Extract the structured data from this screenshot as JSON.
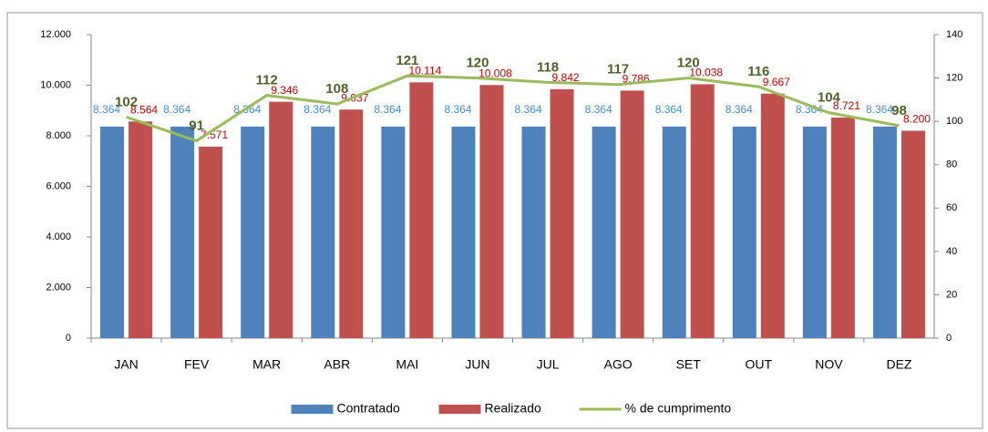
{
  "chart_data": {
    "type": "bar",
    "categories": [
      "JAN",
      "FEV",
      "MAR",
      "ABR",
      "MAI",
      "JUN",
      "JUL",
      "AGO",
      "SET",
      "OUT",
      "NOV",
      "DEZ"
    ],
    "series": [
      {
        "name": "Contratado",
        "type": "bar",
        "color": "#4f81bd",
        "label_color": "#3d8fd6",
        "values": [
          8364,
          8364,
          8364,
          8364,
          8364,
          8364,
          8364,
          8364,
          8364,
          8364,
          8364,
          8364
        ],
        "value_labels": [
          "8.364",
          "8.364",
          "8.364",
          "8.364",
          "8.364",
          "8.364",
          "8.364",
          "8.364",
          "8.364",
          "8.364",
          "8.364",
          "8.364"
        ]
      },
      {
        "name": "Realizado",
        "type": "bar",
        "color": "#c0504d",
        "label_color": "#c00000",
        "values": [
          8564,
          7571,
          9346,
          9037,
          10114,
          10008,
          9842,
          9786,
          10038,
          9667,
          8721,
          8200
        ],
        "value_labels": [
          "8.564",
          "7.571",
          "9.346",
          "9.037",
          "10.114",
          "10.008",
          "9.842",
          "9.786",
          "10.038",
          "9.667",
          "8.721",
          "8.200"
        ]
      },
      {
        "name": "% de cumprimento",
        "type": "line",
        "axis": "y2",
        "color": "#9bbb59",
        "label_color": "#4f6228",
        "values": [
          102,
          91,
          112,
          108,
          121,
          120,
          118,
          117,
          120,
          116,
          104,
          98
        ]
      }
    ],
    "ylim": [
      0,
      12000
    ],
    "yticks": [
      0,
      {
        "value": 2000,
        "label": "2.000"
      },
      {
        "value": 4000,
        "label": "4.000"
      },
      {
        "value": 6000,
        "label": "6.000"
      },
      {
        "value": 8000,
        "label": "8.000"
      },
      {
        "value": 10000,
        "label": "10.000"
      },
      {
        "value": 12000,
        "label": "12.000"
      }
    ],
    "y2lim": [
      0,
      140
    ],
    "y2ticks": [
      0,
      20,
      40,
      60,
      80,
      100,
      120,
      140
    ],
    "legend": "bottom",
    "grid": false
  }
}
